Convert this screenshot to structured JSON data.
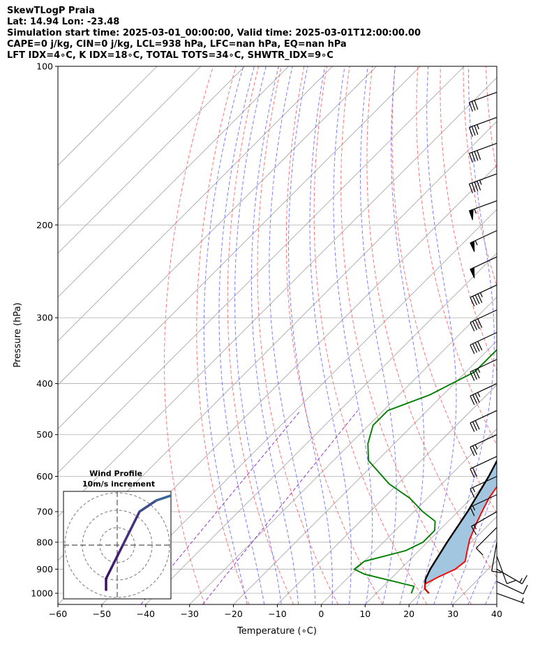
{
  "header": {
    "line1": "SkewTLogP Praia",
    "line2": "Lat: 14.94   Lon: -23.48",
    "line3": "Simulation start time: 2025-03-01_00:00:00, Valid time: 2025-03-01T12:00:00.00",
    "line4": "CAPE=0 j/kg, CIN=0 j/kg, LCL=938 hPa, LFC=nan hPa, EQ=nan hPa",
    "line5": "LFT IDX=4∘C, K IDX=18∘C, TOTAL TOTS=34∘C, SHWTR_IDX=9∘C"
  },
  "inset": {
    "title1": "Wind Profile",
    "title2": "10m/s increment"
  },
  "colors": {
    "temperature": "#ff0000",
    "dewpoint": "#008000",
    "parcel": "#000000",
    "cape_fill": "#a3c6e0",
    "dry_adiabats": "#ff6666",
    "moist_adiabats": "#6666ff",
    "mixing_ratio": "#9933cc",
    "isotherms": "#a0a0a0"
  },
  "chart_data": {
    "type": "line",
    "xlabel": "Temperature (∘C)",
    "ylabel": "Pressure (hPa)",
    "xlim": [
      -60,
      40
    ],
    "ylim": [
      1050,
      100
    ],
    "yscale": "log",
    "grid": true,
    "x_ticks": [
      "−60",
      "−50",
      "−40",
      "−30",
      "−20",
      "−10",
      "0",
      "10",
      "20",
      "30",
      "40"
    ],
    "y_ticks": [
      "100",
      "200",
      "300",
      "400",
      "500",
      "600",
      "700",
      "800",
      "900",
      "1000"
    ],
    "series": [
      {
        "name": "",
        "role": "temperature",
        "points": [
          [
            22,
            1000
          ],
          [
            20,
            980
          ],
          [
            19,
            960
          ],
          [
            20.5,
            930
          ],
          [
            22.5,
            900
          ],
          [
            23,
            870
          ],
          [
            21,
            830
          ],
          [
            19,
            790
          ],
          [
            17,
            740
          ],
          [
            15.5,
            700
          ],
          [
            14,
            660
          ],
          [
            13,
            620
          ],
          [
            12.5,
            580
          ],
          [
            12,
            540
          ],
          [
            11.5,
            500
          ],
          [
            11,
            470
          ],
          [
            11.5,
            450
          ],
          [
            9.5,
            430
          ],
          [
            6.5,
            400
          ],
          [
            3.5,
            370
          ],
          [
            1.5,
            350
          ],
          [
            1,
            325
          ],
          [
            0,
            305
          ],
          [
            -1,
            280
          ],
          [
            -1.5,
            260
          ],
          [
            -3,
            245
          ],
          [
            -4,
            230
          ],
          [
            -5,
            215
          ],
          [
            -6,
            200
          ],
          [
            -7.5,
            185
          ],
          [
            -9,
            170
          ],
          [
            -9,
            160
          ],
          [
            -8,
            148
          ],
          [
            -7.5,
            140
          ],
          [
            -8.5,
            130
          ],
          [
            -9,
            120
          ],
          [
            -10,
            110
          ],
          [
            -11,
            100
          ]
        ]
      },
      {
        "name": "",
        "role": "dewpoint",
        "points": [
          [
            18,
            1000
          ],
          [
            17,
            970
          ],
          [
            3,
            920
          ],
          [
            -0.5,
            900
          ],
          [
            0,
            870
          ],
          [
            7,
            830
          ],
          [
            9,
            800
          ],
          [
            9,
            760
          ],
          [
            7,
            730
          ],
          [
            2,
            700
          ],
          [
            -4,
            660
          ],
          [
            -12,
            620
          ],
          [
            -22,
            560
          ],
          [
            -26,
            520
          ],
          [
            -29,
            480
          ],
          [
            -29,
            450
          ],
          [
            -23,
            420
          ],
          [
            -18,
            380
          ],
          [
            -18,
            350
          ],
          [
            -18,
            330
          ],
          [
            -10,
            310
          ],
          [
            -1,
            290
          ],
          [
            -2,
            275
          ],
          [
            -5,
            250
          ],
          [
            -5,
            240
          ],
          [
            -7,
            220
          ],
          [
            -10,
            200
          ],
          [
            -10.5,
            190
          ],
          [
            -11,
            180
          ],
          [
            -12,
            170
          ],
          [
            -13,
            160
          ],
          [
            -15,
            145
          ],
          [
            -14,
            130
          ],
          [
            -14,
            120
          ],
          [
            -13,
            110
          ],
          [
            -12,
            100
          ]
        ]
      },
      {
        "name": "",
        "role": "parcel",
        "points": [
          [
            22,
            1000
          ],
          [
            20,
            980
          ],
          [
            18.5,
            950
          ],
          [
            18,
            940
          ],
          [
            16.8,
            900
          ],
          [
            14.5,
            800
          ],
          [
            12.2,
            700
          ],
          [
            9,
            600
          ],
          [
            4.5,
            500
          ],
          [
            1.5,
            450
          ],
          [
            -2,
            400
          ],
          [
            -6,
            350
          ],
          [
            -10.5,
            300
          ],
          [
            -17,
            250
          ],
          [
            -24,
            200
          ],
          [
            -28,
            180
          ],
          [
            -32,
            160
          ],
          [
            -36,
            145
          ],
          [
            -41,
            130
          ],
          [
            -45,
            120
          ],
          [
            -50,
            110
          ],
          [
            -54,
            100
          ]
        ]
      }
    ],
    "wind_barbs": [
      {
        "p": 1000,
        "dir": 290,
        "speed": 5
      },
      {
        "p": 950,
        "dir": 295,
        "speed": 10
      },
      {
        "p": 900,
        "dir": 300,
        "speed": 15
      },
      {
        "p": 850,
        "dir": 340,
        "speed": 10
      },
      {
        "p": 800,
        "dir": 10,
        "speed": 10
      },
      {
        "p": 750,
        "dir": 45,
        "speed": 10
      },
      {
        "p": 700,
        "dir": 60,
        "speed": 15
      },
      {
        "p": 650,
        "dir": 65,
        "speed": 15
      },
      {
        "p": 600,
        "dir": 65,
        "speed": 15
      },
      {
        "p": 550,
        "dir": 65,
        "speed": 20
      },
      {
        "p": 500,
        "dir": 65,
        "speed": 25
      },
      {
        "p": 450,
        "dir": 65,
        "speed": 30
      },
      {
        "p": 400,
        "dir": 65,
        "speed": 35
      },
      {
        "p": 360,
        "dir": 65,
        "speed": 35
      },
      {
        "p": 320,
        "dir": 65,
        "speed": 40
      },
      {
        "p": 290,
        "dir": 65,
        "speed": 40
      },
      {
        "p": 260,
        "dir": 65,
        "speed": 45
      },
      {
        "p": 230,
        "dir": 65,
        "speed": 50
      },
      {
        "p": 205,
        "dir": 65,
        "speed": 55
      },
      {
        "p": 180,
        "dir": 70,
        "speed": 55
      },
      {
        "p": 160,
        "dir": 70,
        "speed": 45
      },
      {
        "p": 140,
        "dir": 70,
        "speed": 40
      },
      {
        "p": 125,
        "dir": 70,
        "speed": 35
      },
      {
        "p": 112,
        "dir": 70,
        "speed": 30
      }
    ],
    "hodograph": {
      "rings": 3,
      "uv": [
        [
          -2,
          -8
        ],
        [
          -2,
          -6
        ],
        [
          -1,
          -4
        ],
        [
          0,
          -2
        ],
        [
          1,
          0
        ],
        [
          2,
          2
        ],
        [
          4,
          6
        ],
        [
          7,
          8
        ],
        [
          10,
          9
        ],
        [
          13,
          9
        ],
        [
          16,
          9
        ],
        [
          18,
          8
        ],
        [
          20,
          7
        ]
      ]
    }
  }
}
